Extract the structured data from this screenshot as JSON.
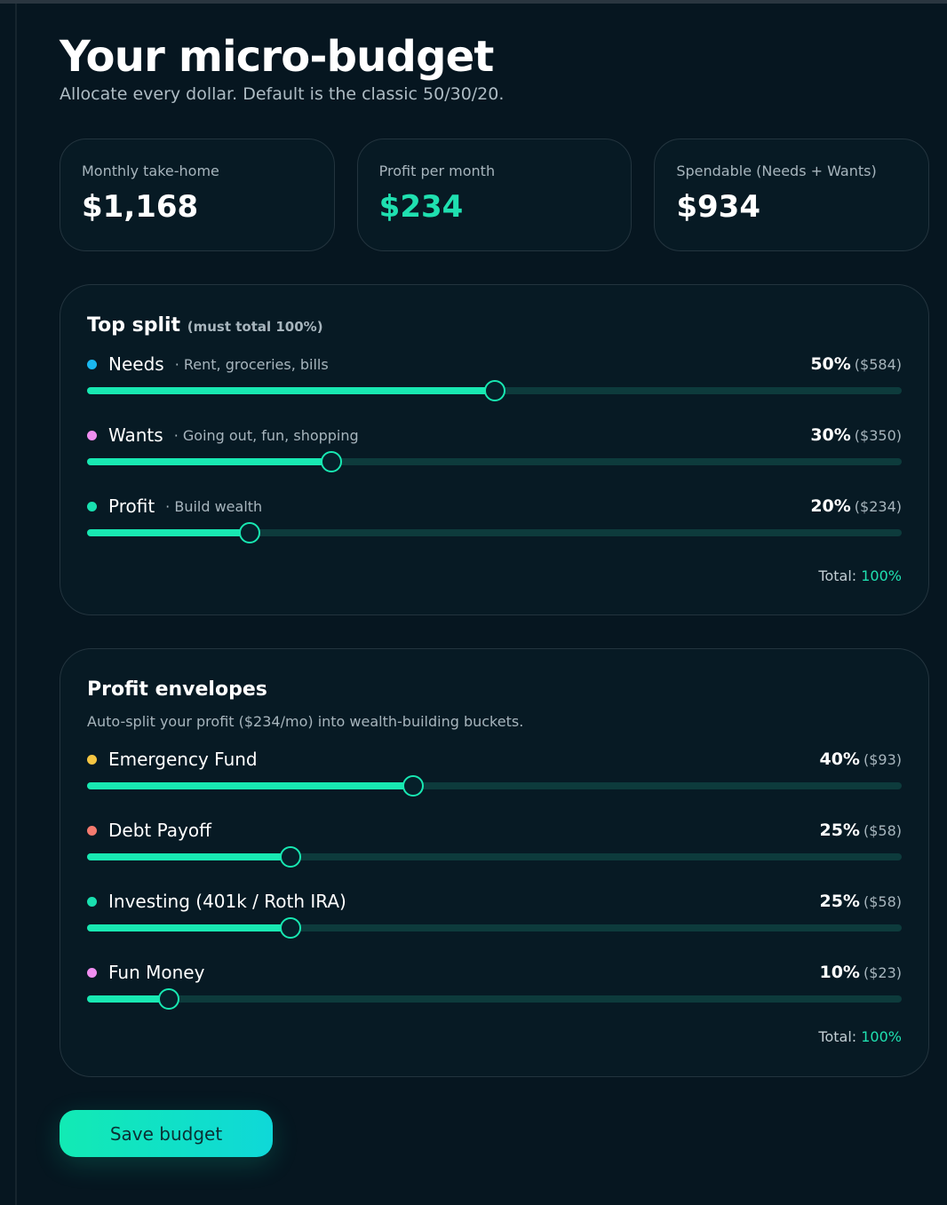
{
  "header": {
    "title": "Your micro-budget",
    "subtitle": "Allocate every dollar. Default is the classic 50/30/20."
  },
  "stats": [
    {
      "label": "Monthly take-home",
      "value": "$1,168",
      "accent": false
    },
    {
      "label": "Profit per month",
      "value": "$234",
      "accent": true
    },
    {
      "label": "Spendable (Needs + Wants)",
      "value": "$934",
      "accent": false
    }
  ],
  "split": {
    "title": "Top split",
    "hint": "(must total 100%)",
    "rows": [
      {
        "name": "Needs",
        "note": "· Rent, groceries, bills",
        "pct": "50%",
        "amount": "($584)",
        "value": 50,
        "color": "#1ab8f0"
      },
      {
        "name": "Wants",
        "note": "· Going out, fun, shopping",
        "pct": "30%",
        "amount": "($350)",
        "value": 30,
        "color": "#f08ef0"
      },
      {
        "name": "Profit",
        "note": "· Build wealth",
        "pct": "20%",
        "amount": "($234)",
        "value": 20,
        "color": "#19e0b0"
      }
    ],
    "total_label": "Total:",
    "total_value": "100%"
  },
  "envelopes": {
    "title": "Profit envelopes",
    "description": "Auto-split your profit ($234/mo) into wealth-building buckets.",
    "rows": [
      {
        "name": "Emergency Fund",
        "pct": "40%",
        "amount": "($93)",
        "value": 40,
        "color": "#f5c542"
      },
      {
        "name": "Debt Payoff",
        "pct": "25%",
        "amount": "($58)",
        "value": 25,
        "color": "#f47a6e"
      },
      {
        "name": "Investing (401k / Roth IRA)",
        "pct": "25%",
        "amount": "($58)",
        "value": 25,
        "color": "#19e0b0"
      },
      {
        "name": "Fun Money",
        "pct": "10%",
        "amount": "($23)",
        "value": 10,
        "color": "#f08ef0"
      }
    ],
    "total_label": "Total:",
    "total_value": "100%"
  },
  "actions": {
    "save_label": "Save budget"
  },
  "colors": {
    "accent": "#18e8b2",
    "background": "#061620",
    "card": "#071a24",
    "track": "#0d3b3c"
  }
}
